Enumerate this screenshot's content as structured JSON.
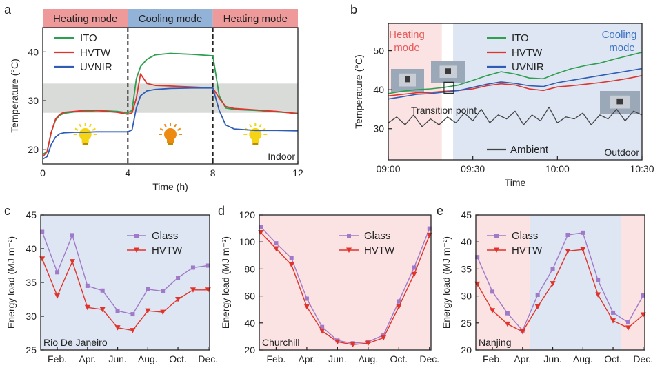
{
  "colors": {
    "ito": "#2e9e4f",
    "hvtw": "#e0332b",
    "uvnir": "#2f5db5",
    "ambient": "#444444",
    "glass": "#a07ac8",
    "heating_bg": "#fbe3e3",
    "cooling_bg": "#dde6f2",
    "heating_banner": "#ef9a9a",
    "cooling_banner": "#92b2d8",
    "gray_band": "#d9dbd9",
    "bulb_yellow": "#f5d315",
    "bulb_orange": "#ec8a12"
  },
  "chart_data": [
    {
      "panel": "a",
      "type": "line",
      "xlabel": "Time (h)",
      "ylabel": "Temperature (°C)",
      "xlim": [
        0,
        12
      ],
      "ylim": [
        17,
        45
      ],
      "xticks": [
        0,
        4,
        8,
        12
      ],
      "xtick_labels": [
        "0",
        "4",
        "8",
        "12"
      ],
      "yticks": [
        20,
        30,
        40
      ],
      "ytick_labels": [
        "20",
        "30",
        "40"
      ],
      "mode_banners": [
        {
          "label": "Heating mode",
          "from": 0,
          "to": 4,
          "mode": "heating"
        },
        {
          "label": "Cooling mode",
          "from": 4,
          "to": 8,
          "mode": "cooling"
        },
        {
          "label": "Heating mode",
          "from": 8,
          "to": 12,
          "mode": "heating"
        }
      ],
      "gray_band": [
        27.5,
        33.5
      ],
      "dividers": [
        4,
        8
      ],
      "bulbs": [
        {
          "x": 2,
          "kind": "yellow"
        },
        {
          "x": 6,
          "kind": "orange"
        },
        {
          "x": 10,
          "kind": "yellow"
        }
      ],
      "annotation": "Indoor",
      "legend": [
        "ITO",
        "HVTW",
        "UVNIR"
      ],
      "series": [
        {
          "name": "ITO",
          "color_key": "ito",
          "x": [
            0,
            0.2,
            0.4,
            0.6,
            0.8,
            1.0,
            1.5,
            2.0,
            2.5,
            3.0,
            3.5,
            4.0,
            4.2,
            4.4,
            4.6,
            4.9,
            5.3,
            6.0,
            7.0,
            8.0,
            8.3,
            8.6,
            9.0,
            10.0,
            11.0,
            12.0
          ],
          "y": [
            19,
            19.5,
            23.5,
            26.0,
            27.0,
            27.4,
            27.7,
            27.8,
            27.9,
            27.9,
            27.8,
            27.5,
            28.0,
            34.5,
            37.0,
            38.5,
            39.4,
            39.7,
            39.5,
            39.2,
            31.0,
            28.5,
            28.2,
            28.0,
            27.7,
            27.4
          ]
        },
        {
          "name": "HVTW",
          "color_key": "hvtw",
          "x": [
            0,
            0.2,
            0.4,
            0.6,
            0.8,
            1.0,
            1.5,
            2.0,
            2.5,
            3.0,
            3.5,
            4.0,
            4.2,
            4.4,
            4.6,
            4.9,
            5.3,
            6.0,
            7.0,
            8.0,
            8.3,
            8.6,
            9.0,
            10.0,
            11.0,
            12.0
          ],
          "y": [
            18.5,
            19.5,
            23.5,
            26.2,
            27.2,
            27.6,
            27.8,
            28.0,
            28.0,
            27.8,
            27.6,
            27.2,
            27.5,
            30.5,
            35.5,
            33.5,
            33.1,
            33.0,
            32.8,
            32.6,
            30.5,
            28.8,
            28.4,
            28.1,
            27.8,
            27.3
          ]
        },
        {
          "name": "UVNIR",
          "color_key": "uvnir",
          "x": [
            0,
            0.2,
            0.4,
            0.6,
            0.8,
            1.0,
            1.5,
            2.0,
            2.5,
            3.0,
            3.5,
            4.0,
            4.2,
            4.4,
            4.6,
            4.9,
            5.3,
            6.0,
            7.0,
            8.0,
            8.3,
            8.6,
            9.0,
            10.0,
            11.0,
            12.0
          ],
          "y": [
            18.0,
            18.5,
            21.0,
            22.5,
            23.2,
            23.4,
            23.5,
            23.5,
            23.6,
            23.6,
            23.6,
            23.6,
            24.0,
            28.5,
            31.0,
            32.0,
            32.3,
            32.5,
            32.6,
            32.6,
            28.0,
            25.0,
            24.2,
            23.9,
            23.9,
            23.8
          ]
        }
      ]
    },
    {
      "panel": "b",
      "type": "line",
      "xlabel": "Time",
      "ylabel": "Temperature (°C)",
      "xlim": [
        0,
        90
      ],
      "ylim": [
        22,
        57
      ],
      "xticks": [
        0,
        30,
        60,
        90
      ],
      "xtick_labels": [
        "09:00",
        "09:30",
        "10:00",
        "10:30"
      ],
      "yticks": [
        30,
        40,
        50
      ],
      "ytick_labels": [
        "30",
        "40",
        "50"
      ],
      "heating_region": [
        0,
        19
      ],
      "cooling_region": [
        23,
        90
      ],
      "heating_label": "Heating mode",
      "cooling_label": "Cooling mode",
      "transition_label": "Transition point",
      "transition_x": 21.5,
      "transition_y": 40.5,
      "annotation": "Outdoor",
      "legend": [
        "ITO",
        "HVTW",
        "UVNIR",
        "Ambient"
      ],
      "series": [
        {
          "name": "ITO",
          "color_key": "ito",
          "x": [
            0,
            5,
            10,
            15,
            20,
            25,
            30,
            35,
            40,
            45,
            50,
            55,
            60,
            65,
            70,
            75,
            80,
            85,
            90
          ],
          "y": [
            39.0,
            39.6,
            40.0,
            40.2,
            40.6,
            41.2,
            42.4,
            43.6,
            44.6,
            44.0,
            43.0,
            42.8,
            44.2,
            45.4,
            46.2,
            46.8,
            47.8,
            48.7,
            49.6
          ]
        },
        {
          "name": "HVTW",
          "color_key": "hvtw",
          "x": [
            0,
            5,
            10,
            15,
            20,
            25,
            30,
            35,
            40,
            45,
            50,
            55,
            60,
            65,
            70,
            75,
            80,
            85,
            90
          ],
          "y": [
            38.4,
            38.8,
            39.2,
            39.3,
            39.6,
            39.8,
            40.2,
            41.0,
            41.5,
            41.2,
            40.2,
            39.8,
            40.7,
            41.0,
            41.4,
            41.8,
            42.3,
            42.9,
            43.6
          ]
        },
        {
          "name": "UVNIR",
          "color_key": "uvnir",
          "x": [
            0,
            5,
            10,
            15,
            20,
            25,
            30,
            35,
            40,
            45,
            50,
            55,
            60,
            65,
            70,
            75,
            80,
            85,
            90
          ],
          "y": [
            37.6,
            38.2,
            38.8,
            39.0,
            39.4,
            39.8,
            40.6,
            41.4,
            42.0,
            41.6,
            41.0,
            40.8,
            41.8,
            42.4,
            43.0,
            43.6,
            44.2,
            44.8,
            45.4
          ]
        },
        {
          "name": "Ambient",
          "color_key": "ambient",
          "x": [
            0,
            3,
            6,
            9,
            12,
            15,
            18,
            21,
            24,
            27,
            30,
            33,
            36,
            39,
            42,
            45,
            48,
            51,
            54,
            57,
            60,
            63,
            66,
            69,
            72,
            75,
            78,
            81,
            84,
            87,
            90
          ],
          "y": [
            31.5,
            33.0,
            31.0,
            33.5,
            30.5,
            32.5,
            31.0,
            33.0,
            31.5,
            34.0,
            32.0,
            35.0,
            31.5,
            33.5,
            32.5,
            34.5,
            31.0,
            33.5,
            32.0,
            35.5,
            31.5,
            33.0,
            32.5,
            34.0,
            31.0,
            33.5,
            32.5,
            35.0,
            32.0,
            34.5,
            33.5
          ]
        }
      ]
    },
    {
      "panel": "c",
      "type": "line",
      "ylabel": "Energy load (MJ m⁻²)",
      "ylim": [
        25,
        45
      ],
      "yticks": [
        25,
        30,
        35,
        40,
        45
      ],
      "ytick_labels": [
        "25",
        "30",
        "35",
        "40",
        "45"
      ],
      "xlim": [
        1,
        12
      ],
      "xticks": [
        2,
        4,
        6,
        8,
        10,
        12
      ],
      "xtick_labels": [
        "Feb.",
        "Apr.",
        "Jun.",
        "Aug.",
        "Oct.",
        "Dec."
      ],
      "location": "Rio De Janeiro",
      "background_regions": [
        {
          "from": 1,
          "to": 12,
          "mode": "cooling"
        }
      ],
      "legend": [
        "Glass",
        "HVTW"
      ],
      "series": [
        {
          "name": "Glass",
          "color_key": "glass",
          "marker": "square",
          "x": [
            1,
            2,
            3,
            4,
            5,
            6,
            7,
            8,
            9,
            10,
            11,
            12
          ],
          "y": [
            42.5,
            36.5,
            42.0,
            34.5,
            33.8,
            30.8,
            30.3,
            34.0,
            33.7,
            35.7,
            37.2,
            37.5
          ]
        },
        {
          "name": "HVTW",
          "color_key": "hvtw",
          "marker": "triangle",
          "x": [
            1,
            2,
            3,
            4,
            5,
            6,
            7,
            8,
            9,
            10,
            11,
            12
          ],
          "y": [
            38.5,
            33.0,
            38.1,
            31.3,
            31.0,
            28.3,
            27.9,
            30.8,
            30.6,
            32.5,
            33.9,
            33.9
          ]
        }
      ]
    },
    {
      "panel": "d",
      "type": "line",
      "ylabel": "Energy load (MJ m⁻²)",
      "ylim": [
        20,
        120
      ],
      "yticks": [
        20,
        40,
        60,
        80,
        100,
        120
      ],
      "ytick_labels": [
        "20",
        "40",
        "60",
        "80",
        "100",
        "120"
      ],
      "xlim": [
        1,
        12
      ],
      "xticks": [
        2,
        4,
        6,
        8,
        10,
        12
      ],
      "xtick_labels": [
        "Feb.",
        "Apr.",
        "Jun.",
        "Aug.",
        "Oct.",
        "Dec."
      ],
      "location": "Churchill",
      "background_regions": [
        {
          "from": 1,
          "to": 12,
          "mode": "heating"
        }
      ],
      "legend": [
        "Glass",
        "HVTW"
      ],
      "series": [
        {
          "name": "Glass",
          "color_key": "glass",
          "marker": "square",
          "x": [
            1,
            2,
            3,
            4,
            5,
            6,
            7,
            8,
            9,
            10,
            11,
            12
          ],
          "y": [
            111,
            99,
            88,
            58,
            37,
            27,
            25,
            26,
            31,
            56,
            81,
            110
          ]
        },
        {
          "name": "HVTW",
          "color_key": "hvtw",
          "marker": "triangle",
          "x": [
            1,
            2,
            3,
            4,
            5,
            6,
            7,
            8,
            9,
            10,
            11,
            12
          ],
          "y": [
            107,
            95,
            83,
            52,
            34,
            26,
            24,
            25,
            29,
            52,
            76,
            105
          ]
        }
      ]
    },
    {
      "panel": "e",
      "type": "line",
      "ylabel": "Energy load (MJ m⁻²)",
      "ylim": [
        20,
        45
      ],
      "yticks": [
        20,
        25,
        30,
        35,
        40,
        45
      ],
      "ytick_labels": [
        "20",
        "25",
        "30",
        "35",
        "40",
        "45"
      ],
      "xlim": [
        1,
        12
      ],
      "xticks": [
        2,
        4,
        6,
        8,
        10,
        12
      ],
      "xtick_labels": [
        "Feb.",
        "Apr.",
        "Jun.",
        "Aug.",
        "Oct.",
        "Dec."
      ],
      "location": "Nanjing",
      "background_regions": [
        {
          "from": 1,
          "to": 4.5,
          "mode": "heating"
        },
        {
          "from": 4.5,
          "to": 10.5,
          "mode": "cooling"
        },
        {
          "from": 10.5,
          "to": 12,
          "mode": "heating"
        }
      ],
      "legend": [
        "Glass",
        "HVTW"
      ],
      "series": [
        {
          "name": "Glass",
          "color_key": "glass",
          "marker": "square",
          "x": [
            1,
            2,
            3,
            4,
            5,
            6,
            7,
            8,
            9,
            10,
            11,
            12
          ],
          "y": [
            37.2,
            30.8,
            26.8,
            23.6,
            30.2,
            35.0,
            41.3,
            41.7,
            32.9,
            26.9,
            25.1,
            30.1
          ]
        },
        {
          "name": "HVTW",
          "color_key": "hvtw",
          "marker": "triangle",
          "x": [
            1,
            2,
            3,
            4,
            5,
            6,
            7,
            8,
            9,
            10,
            11,
            12
          ],
          "y": [
            32.2,
            27.3,
            24.8,
            23.4,
            28.0,
            32.3,
            38.3,
            38.6,
            30.2,
            25.4,
            24.1,
            26.5
          ]
        }
      ]
    }
  ],
  "panel_labels": [
    "a",
    "b",
    "c",
    "d",
    "e"
  ]
}
